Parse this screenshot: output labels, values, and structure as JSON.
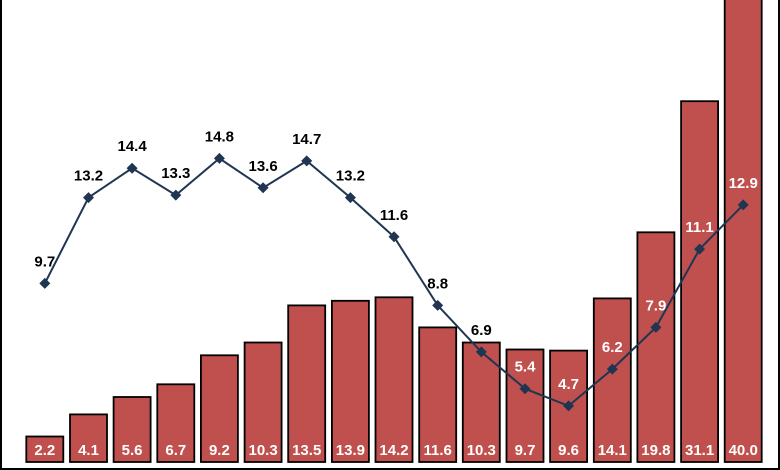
{
  "chart_data": {
    "type": "bar",
    "title": "",
    "xlabel": "",
    "ylabel": "",
    "grid": false,
    "legend": "none",
    "categories": [
      "",
      "",
      "",
      "",
      "",
      "",
      "",
      "",
      "",
      "",
      "",
      "",
      "",
      "",
      "",
      "",
      ""
    ],
    "series": [
      {
        "type": "bar",
        "values": [
          2.2,
          4.1,
          5.6,
          6.7,
          9.2,
          10.3,
          13.5,
          13.9,
          14.2,
          11.6,
          10.3,
          9.7,
          9.6,
          14.1,
          19.8,
          31.1,
          40.0
        ],
        "labels": [
          "2.2",
          "4.1",
          "5.6",
          "6.7",
          "9.2",
          "10.3",
          "13.5",
          "13.9",
          "14.2",
          "11.6",
          "10.3",
          "9.7",
          "9.6",
          "14.1",
          "19.8",
          "31.1",
          "40.0"
        ],
        "color": "#c0504d",
        "label_color": "#ffffff"
      },
      {
        "type": "line",
        "values": [
          9.7,
          13.2,
          14.4,
          13.3,
          14.8,
          13.6,
          14.7,
          13.2,
          11.6,
          8.8,
          6.9,
          5.4,
          4.7,
          6.2,
          7.9,
          11.1,
          12.9
        ],
        "labels": [
          "9.7",
          "13.2",
          "14.4",
          "13.3",
          "14.8",
          "13.6",
          "14.7",
          "13.2",
          "11.6",
          "8.8",
          "6.9",
          "5.4",
          "4.7",
          "6.2",
          "7.9",
          "11.1",
          "12.9"
        ],
        "color": "#1f3552",
        "marker": "diamond"
      }
    ]
  }
}
